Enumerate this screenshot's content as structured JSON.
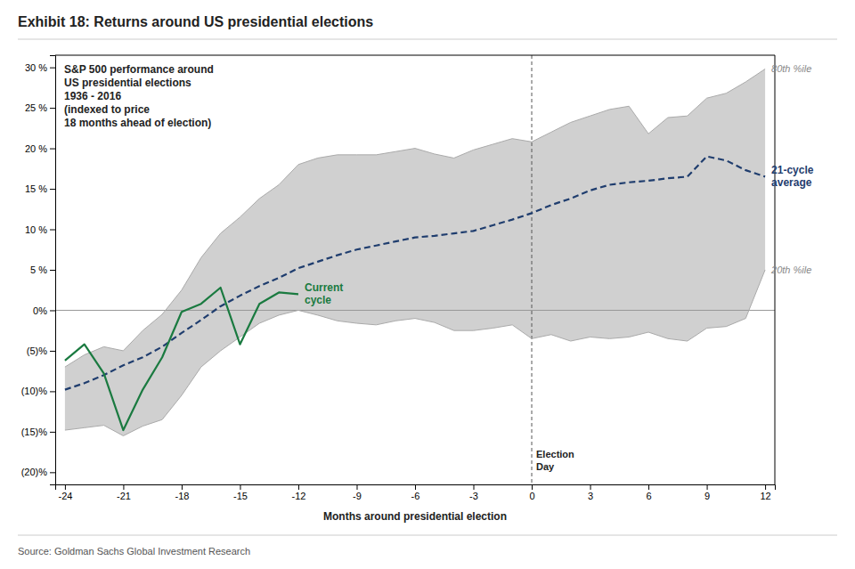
{
  "chart_data": {
    "type": "line",
    "title": "Exhibit 18: Returns around US presidential elections",
    "xlabel": "Months around presidential election",
    "source": "Source: Goldman Sachs Global Investment Research",
    "annotation": "S&P 500 performance around\nUS presidential elections\n1936 - 2016\n(indexed to price\n18 months ahead of election)",
    "xlim": [
      -24.5,
      12.5
    ],
    "ylim": [
      -0.215,
      0.315
    ],
    "xticks": [
      -24,
      -21,
      -18,
      -15,
      -12,
      -9,
      -6,
      -3,
      0,
      3,
      6,
      9,
      12
    ],
    "yticks": [
      {
        "value": -0.2,
        "label": "(20)%"
      },
      {
        "value": -0.15,
        "label": "(15)%"
      },
      {
        "value": -0.1,
        "label": "(10)%"
      },
      {
        "value": -0.05,
        "label": "(5)%"
      },
      {
        "value": 0.0,
        "label": "0%"
      },
      {
        "value": 0.05,
        "label": "5 %"
      },
      {
        "value": 0.1,
        "label": "10 %"
      },
      {
        "value": 0.15,
        "label": "15 %"
      },
      {
        "value": 0.2,
        "label": "20 %"
      },
      {
        "value": 0.25,
        "label": "25 %"
      },
      {
        "value": 0.3,
        "label": "30 %"
      }
    ],
    "grid": false,
    "fill_between": [
      0,
      1
    ],
    "reference_lines": [
      {
        "axis": "x",
        "value": 0,
        "label": "Election\nDay"
      },
      {
        "axis": "y",
        "value": 0
      }
    ],
    "series": [
      {
        "name": "80th %ile",
        "color": "#aaaaaa",
        "line_style": "solid",
        "x": [
          -24,
          -23,
          -22,
          -21,
          -20,
          -19,
          -18,
          -17,
          -16,
          -15,
          -14,
          -13,
          -12,
          -11,
          -10,
          -9,
          -8,
          -7,
          -6,
          -5,
          -4,
          -3,
          -2,
          -1,
          0,
          1,
          2,
          3,
          4,
          5,
          6,
          7,
          8,
          9,
          10,
          11,
          12
        ],
        "values": [
          -0.07,
          -0.055,
          -0.045,
          -0.05,
          -0.025,
          -0.005,
          0.025,
          0.065,
          0.095,
          0.115,
          0.138,
          0.155,
          0.18,
          0.188,
          0.192,
          0.192,
          0.192,
          0.196,
          0.2,
          0.193,
          0.188,
          0.198,
          0.205,
          0.212,
          0.208,
          0.22,
          0.232,
          0.24,
          0.248,
          0.252,
          0.218,
          0.238,
          0.24,
          0.262,
          0.268,
          0.282,
          0.298
        ]
      },
      {
        "name": "20th %ile",
        "color": "#aaaaaa",
        "line_style": "solid",
        "x": [
          -24,
          -23,
          -22,
          -21,
          -20,
          -19,
          -18,
          -17,
          -16,
          -15,
          -14,
          -13,
          -12,
          -11,
          -10,
          -9,
          -8,
          -7,
          -6,
          -5,
          -4,
          -3,
          -2,
          -1,
          0,
          1,
          2,
          3,
          4,
          5,
          6,
          7,
          8,
          9,
          10,
          11,
          12
        ],
        "values": [
          -0.148,
          -0.145,
          -0.142,
          -0.155,
          -0.143,
          -0.135,
          -0.105,
          -0.07,
          -0.05,
          -0.033,
          -0.016,
          -0.006,
          0.0,
          -0.006,
          -0.013,
          -0.016,
          -0.018,
          -0.013,
          -0.01,
          -0.015,
          -0.025,
          -0.025,
          -0.022,
          -0.018,
          -0.035,
          -0.03,
          -0.038,
          -0.033,
          -0.035,
          -0.033,
          -0.027,
          -0.035,
          -0.038,
          -0.022,
          -0.02,
          -0.01,
          0.05
        ]
      },
      {
        "name": "21-cycle\naverage",
        "color": "#1f3d6e",
        "line_style": "dashed",
        "x": [
          -24,
          -23,
          -22,
          -21,
          -20,
          -19,
          -18,
          -17,
          -16,
          -15,
          -14,
          -13,
          -12,
          -11,
          -10,
          -9,
          -8,
          -7,
          -6,
          -5,
          -4,
          -3,
          -2,
          -1,
          0,
          1,
          2,
          3,
          4,
          5,
          6,
          7,
          8,
          9,
          10,
          11,
          12
        ],
        "values": [
          -0.098,
          -0.09,
          -0.08,
          -0.068,
          -0.058,
          -0.045,
          -0.028,
          -0.012,
          0.005,
          0.018,
          0.03,
          0.04,
          0.052,
          0.06,
          0.068,
          0.075,
          0.08,
          0.085,
          0.09,
          0.092,
          0.095,
          0.098,
          0.105,
          0.112,
          0.12,
          0.13,
          0.138,
          0.148,
          0.155,
          0.158,
          0.16,
          0.163,
          0.165,
          0.19,
          0.185,
          0.173,
          0.165
        ]
      },
      {
        "name": "Current\ncycle",
        "color": "#1a7a40",
        "line_style": "solid",
        "x": [
          -24,
          -23,
          -22,
          -21,
          -20,
          -19,
          -18,
          -17,
          -16,
          -15,
          -14,
          -13,
          -12
        ],
        "values": [
          -0.062,
          -0.042,
          -0.078,
          -0.148,
          -0.098,
          -0.058,
          -0.002,
          0.008,
          0.028,
          -0.042,
          0.008,
          0.022,
          0.02
        ]
      }
    ]
  }
}
